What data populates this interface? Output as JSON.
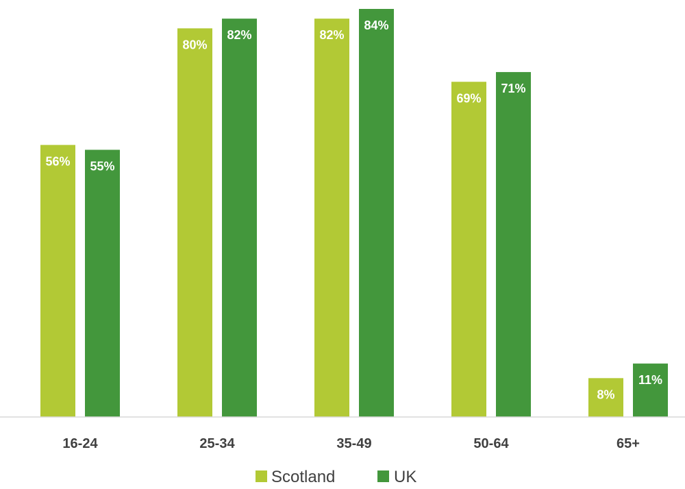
{
  "chart_data": {
    "type": "bar",
    "title": "",
    "xlabel": "",
    "ylabel": "",
    "categories": [
      "16-24",
      "25-34",
      "35-49",
      "50-64",
      "65+"
    ],
    "series": [
      {
        "name": "Scotland",
        "color": "#b2c935",
        "values": [
          56,
          80,
          82,
          69,
          8
        ],
        "labels": [
          "56%",
          "80%",
          "82%",
          "69%",
          "8%"
        ]
      },
      {
        "name": "UK",
        "color": "#43973c",
        "values": [
          55,
          82,
          84,
          71,
          11
        ],
        "labels": [
          "55%",
          "82%",
          "84%",
          "71%",
          "11%"
        ]
      }
    ],
    "ylim": [
      0,
      85
    ],
    "grid": false,
    "legend_position": "bottom",
    "axis_color": "#d9d9d9",
    "text_color": "#404040"
  }
}
